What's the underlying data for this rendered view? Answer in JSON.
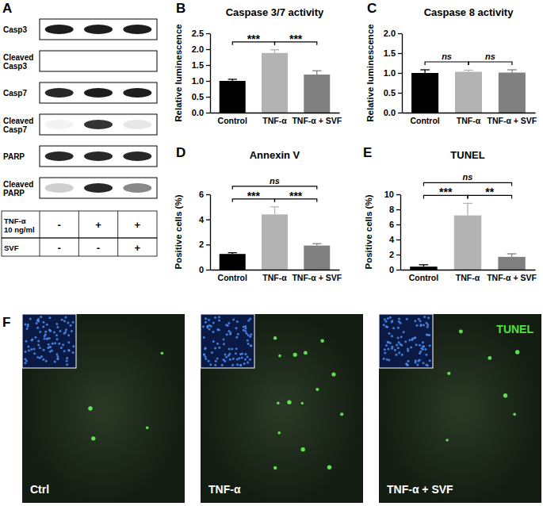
{
  "chart_data": [
    {
      "panel": "B",
      "type": "bar",
      "title": "Caspase 3/7 activity",
      "ylabel": "Relative luminescence",
      "categories": [
        "Control",
        "TNF-α",
        "TNF-α + SVF"
      ],
      "values": [
        1.0,
        1.88,
        1.2
      ],
      "errors": [
        0.05,
        0.1,
        0.12
      ],
      "colors": [
        "#000000",
        "#b3b3b3",
        "#808080"
      ],
      "ylim": [
        0,
        2.5
      ],
      "yticks": [
        {
          "value": 0,
          "label": "0.0"
        },
        0.5,
        {
          "value": 1,
          "label": "1.0"
        },
        1.5,
        {
          "value": 2,
          "label": "2.0"
        },
        2.5
      ],
      "significance": [
        {
          "pair": [
            "Control",
            "TNF-α"
          ],
          "label": "***"
        },
        {
          "pair": [
            "TNF-α",
            "TNF-α + SVF"
          ],
          "label": "***"
        }
      ]
    },
    {
      "panel": "C",
      "type": "bar",
      "title": "Caspase 8 activity",
      "ylabel": "Relative luminescence",
      "categories": [
        "Control",
        "TNF-α",
        "TNF-α + SVF"
      ],
      "values": [
        1.0,
        1.03,
        1.01
      ],
      "errors": [
        0.08,
        0.04,
        0.07
      ],
      "colors": [
        "#000000",
        "#b3b3b3",
        "#808080"
      ],
      "ylim": [
        0,
        2
      ],
      "yticks": [
        {
          "value": 0,
          "label": "0.0"
        },
        0.5,
        {
          "value": 1,
          "label": "1.0"
        },
        1.5,
        {
          "value": 2,
          "label": "2.0"
        }
      ],
      "significance": [
        {
          "pair": [
            "Control",
            "TNF-α"
          ],
          "label": "ns"
        },
        {
          "pair": [
            "TNF-α",
            "TNF-α + SVF"
          ],
          "label": "ns"
        }
      ]
    },
    {
      "panel": "D",
      "type": "bar",
      "title": "Annexin V",
      "ylabel": "Positive cells (%)",
      "categories": [
        "Control",
        "TNF-α",
        "TNF-α + SVF"
      ],
      "values": [
        1.25,
        4.4,
        1.92
      ],
      "errors": [
        0.1,
        0.6,
        0.15
      ],
      "colors": [
        "#000000",
        "#b3b3b3",
        "#808080"
      ],
      "ylim": [
        0,
        6
      ],
      "yticks": [
        0,
        2,
        4,
        6
      ],
      "significance": [
        {
          "pair": [
            "Control",
            "TNF-α"
          ],
          "label": "***"
        },
        {
          "pair": [
            "TNF-α",
            "TNF-α + SVF"
          ],
          "label": "***"
        },
        {
          "pair": [
            "Control",
            "TNF-α + SVF"
          ],
          "label": "ns"
        }
      ]
    },
    {
      "panel": "E",
      "type": "bar",
      "title": "TUNEL",
      "ylabel": "Positive cells (%)",
      "categories": [
        "Control",
        "TNF-α",
        "TNF-α + SVF"
      ],
      "values": [
        0.4,
        7.2,
        1.7
      ],
      "errors": [
        0.25,
        1.6,
        0.4
      ],
      "colors": [
        "#000000",
        "#b3b3b3",
        "#808080"
      ],
      "ylim": [
        0,
        10
      ],
      "yticks": [
        0,
        2,
        4,
        6,
        8,
        10
      ],
      "significance": [
        {
          "pair": [
            "Control",
            "TNF-α"
          ],
          "label": "***"
        },
        {
          "pair": [
            "TNF-α",
            "TNF-α + SVF"
          ],
          "label": "**"
        },
        {
          "pair": [
            "Control",
            "TNF-α + SVF"
          ],
          "label": "ns"
        }
      ]
    }
  ],
  "blot": {
    "panel": "A",
    "rows": [
      {
        "label_lines": [
          "Casp3"
        ],
        "bands": [
          0.95,
          0.95,
          0.95
        ]
      },
      {
        "label_lines": [
          "Cleaved",
          "Casp3"
        ],
        "bands": [
          0,
          0,
          0
        ]
      },
      {
        "label_lines": [
          "Casp7"
        ],
        "bands": [
          0.9,
          0.95,
          0.95
        ]
      },
      {
        "label_lines": [
          "Cleaved",
          "Casp7"
        ],
        "bands": [
          0.05,
          0.85,
          0.1
        ]
      },
      {
        "label_lines": [
          "PARP"
        ],
        "bands": [
          0.9,
          0.9,
          0.9
        ]
      },
      {
        "label_lines": [
          "Cleaved",
          "PARP"
        ],
        "bands": [
          0.2,
          0.9,
          0.5
        ]
      }
    ],
    "conditions": [
      {
        "label_lines": [
          "TNF-α",
          "10 ng/ml"
        ],
        "signs": [
          "-",
          "+",
          "+"
        ]
      },
      {
        "label_lines": [
          "SVF"
        ],
        "signs": [
          "-",
          "-",
          "+"
        ]
      }
    ]
  },
  "micrographs": {
    "panel": "F",
    "stain_label": "TUNEL",
    "images": [
      {
        "label": "Ctrl"
      },
      {
        "label": "TNF-α"
      },
      {
        "label": "TNF-α + SVF"
      }
    ]
  }
}
